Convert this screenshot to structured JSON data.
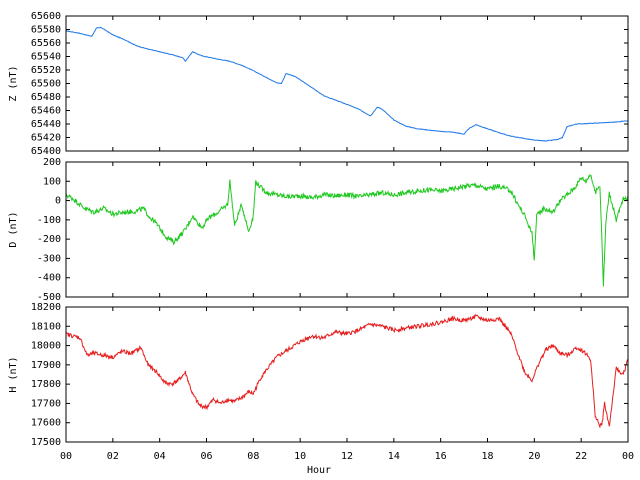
{
  "chart_data": [
    {
      "type": "line",
      "ylabel": "Z (nT)",
      "ylim": [
        65400,
        65600
      ],
      "yticks": [
        65400,
        65420,
        65440,
        65460,
        65480,
        65500,
        65520,
        65540,
        65560,
        65580,
        65600
      ],
      "color": "#1e78e6",
      "x": [
        0,
        0.5,
        1.1,
        1.3,
        1.5,
        2,
        2.5,
        3,
        3.5,
        4,
        4.5,
        5,
        5.1,
        5.4,
        5.8,
        6.5,
        7,
        7.5,
        8,
        8.5,
        9,
        9.2,
        9.4,
        9.8,
        10.5,
        11,
        12,
        12.5,
        13,
        13.3,
        13.5,
        14,
        14.5,
        15,
        16,
        16.5,
        17,
        17.2,
        17.5,
        18,
        18.5,
        19,
        19.5,
        20,
        20.5,
        21,
        21.2,
        21.4,
        21.8,
        22.5,
        23,
        23.5,
        24
      ],
      "values": [
        65578,
        65575,
        65570,
        65582,
        65583,
        65572,
        65565,
        65556,
        65551,
        65547,
        65543,
        65538,
        65533,
        65547,
        65541,
        65536,
        65533,
        65527,
        65519,
        65510,
        65501,
        65500,
        65515,
        65510,
        65494,
        65482,
        65469,
        65462,
        65452,
        65465,
        65462,
        65446,
        65437,
        65433,
        65429,
        65428,
        65425,
        65433,
        65439,
        65433,
        65427,
        65422,
        65419,
        65416,
        65415,
        65417,
        65420,
        65436,
        65440,
        65441,
        65442,
        65443,
        65445
      ]
    },
    {
      "type": "line",
      "ylabel": "D (nT)",
      "ylim": [
        -500,
        200
      ],
      "yticks": [
        -500,
        -400,
        -300,
        -200,
        -100,
        0,
        100,
        200
      ],
      "color": "#1ec81e",
      "x": [
        0,
        0.3,
        0.8,
        1.2,
        1.6,
        2,
        2.5,
        3,
        3.3,
        3.6,
        3.8,
        4.1,
        4.3,
        4.6,
        4.8,
        5.1,
        5.4,
        5.8,
        6.1,
        6.5,
        6.9,
        7,
        7.2,
        7.5,
        7.8,
        8,
        8.1,
        8.3,
        8.6,
        9,
        9.5,
        10,
        10.5,
        11,
        11.5,
        12,
        12.5,
        13,
        13.5,
        14,
        14.5,
        15,
        15.5,
        16,
        16.5,
        17,
        17.5,
        18,
        18.5,
        19,
        19.3,
        19.6,
        19.9,
        20,
        20.1,
        20.4,
        20.8,
        21.1,
        21.5,
        21.8,
        22,
        22.2,
        22.4,
        22.6,
        22.8,
        22.9,
        22.95,
        23.05,
        23.2,
        23.5,
        23.8,
        24
      ],
      "values": [
        30,
        10,
        -40,
        -60,
        -40,
        -70,
        -60,
        -55,
        -40,
        -90,
        -110,
        -160,
        -190,
        -215,
        -190,
        -150,
        -80,
        -140,
        -90,
        -60,
        -20,
        100,
        -130,
        -20,
        -160,
        -80,
        100,
        70,
        40,
        30,
        20,
        25,
        15,
        30,
        25,
        30,
        20,
        30,
        40,
        30,
        40,
        50,
        55,
        50,
        60,
        75,
        80,
        60,
        75,
        50,
        -20,
        -80,
        -170,
        -300,
        -80,
        -40,
        -60,
        0,
        40,
        80,
        120,
        100,
        140,
        40,
        80,
        -250,
        -440,
        -120,
        40,
        -100,
        10,
        0
      ]
    },
    {
      "type": "line",
      "ylabel": "H (nT)",
      "ylim": [
        17500,
        18200
      ],
      "yticks": [
        17500,
        17600,
        17700,
        17800,
        17900,
        18000,
        18100,
        18200
      ],
      "color": "#e61e1e",
      "xlabel": "Hour",
      "x": [
        0,
        0.3,
        0.6,
        0.9,
        1.2,
        1.6,
        2,
        2.4,
        2.8,
        3.2,
        3.5,
        3.9,
        4.2,
        4.5,
        4.8,
        5.1,
        5.4,
        5.7,
        6,
        6.3,
        6.6,
        6.9,
        7.2,
        7.5,
        7.8,
        8,
        8.3,
        8.6,
        9,
        9.5,
        10,
        10.5,
        11,
        11.5,
        12,
        12.5,
        13,
        13.5,
        14,
        14.5,
        15,
        15.5,
        16,
        16.5,
        17,
        17.5,
        18,
        18.5,
        19,
        19.3,
        19.6,
        19.9,
        20.2,
        20.5,
        20.8,
        21.1,
        21.4,
        21.8,
        22.1,
        22.4,
        22.6,
        22.8,
        22.9,
        23,
        23.2,
        23.5,
        23.8,
        24
      ],
      "values": [
        18060,
        18050,
        18040,
        17950,
        17960,
        17950,
        17940,
        17970,
        17960,
        17990,
        17900,
        17860,
        17810,
        17800,
        17820,
        17860,
        17750,
        17690,
        17680,
        17720,
        17700,
        17720,
        17710,
        17730,
        17760,
        17750,
        17830,
        17880,
        17940,
        17980,
        18020,
        18050,
        18040,
        18070,
        18060,
        18080,
        18110,
        18100,
        18080,
        18090,
        18100,
        18110,
        18120,
        18140,
        18130,
        18150,
        18130,
        18140,
        18060,
        17960,
        17860,
        17820,
        17910,
        17980,
        18000,
        17960,
        17950,
        17990,
        17970,
        17930,
        17640,
        17580,
        17600,
        17700,
        17580,
        17880,
        17850,
        17930
      ]
    }
  ],
  "x_axis": {
    "xlim": [
      0,
      24
    ],
    "tick_labels": [
      "00",
      "02",
      "04",
      "06",
      "08",
      "10",
      "12",
      "14",
      "16",
      "18",
      "20",
      "22",
      "00"
    ]
  }
}
